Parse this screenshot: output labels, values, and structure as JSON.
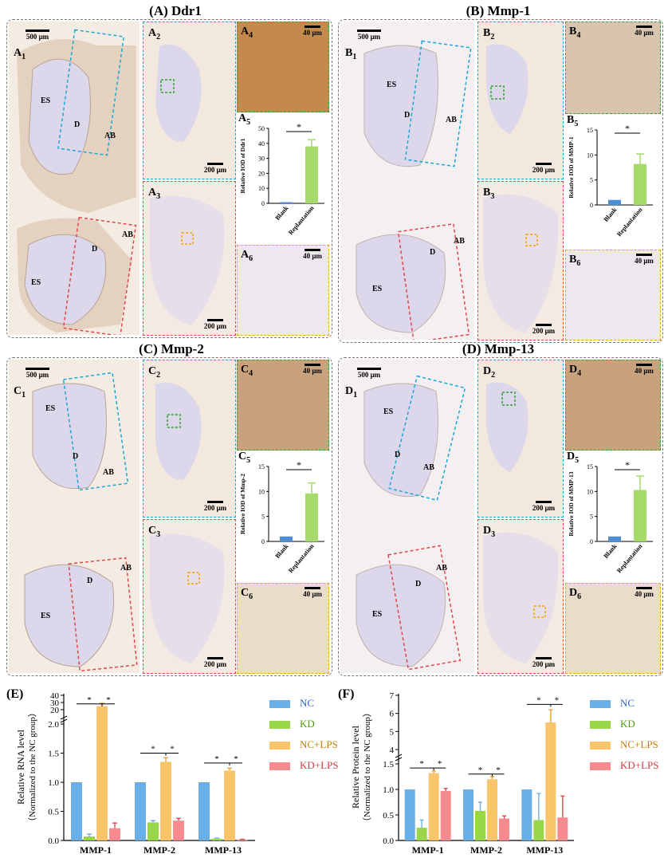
{
  "panels": {
    "A": {
      "title": "(A) Ddr1",
      "labels": {
        "l1": "A",
        "s1": "1",
        "l2": "A",
        "s2": "2",
        "l3": "A",
        "s3": "3",
        "l4": "A",
        "s4": "4",
        "l5": "A",
        "s5": "5",
        "l6": "A",
        "s6": "6"
      },
      "tissue": {
        "es": "ES",
        "d": "D",
        "ab": "AB",
        "es2": "ES",
        "d2": "D",
        "ab2": "AB"
      },
      "scales": {
        "overview": "500 μm",
        "sub2": "200 μm",
        "sub3": "200 μm",
        "sub4": "40 μm",
        "sub6": "40 μm"
      },
      "ylabel": "Relative IOD of Ddr1",
      "star": "*"
    },
    "B": {
      "title": "(B) Mmp-1",
      "labels": {
        "l1": "B",
        "s1": "1",
        "l2": "B",
        "s2": "2",
        "l3": "B",
        "s3": "3",
        "l4": "B",
        "s4": "4",
        "l5": "B",
        "s5": "5",
        "l6": "B",
        "s6": "6"
      },
      "tissue": {
        "es": "ES",
        "d": "D",
        "ab": "AB",
        "es2": "ES",
        "d2": "D",
        "ab2": "AB"
      },
      "scales": {
        "overview": "500 μm",
        "sub2": "200 μm",
        "sub3": "200 μm",
        "sub4": "40 μm",
        "sub6": "40 μm"
      },
      "ylabel": "Relative IOD of MMP-1",
      "star": "*"
    },
    "C": {
      "title": "(C) Mmp-2",
      "labels": {
        "l1": "C",
        "s1": "1",
        "l2": "C",
        "s2": "2",
        "l3": "C",
        "s3": "3",
        "l4": "C",
        "s4": "4",
        "l5": "C",
        "s5": "5",
        "l6": "C",
        "s6": "6"
      },
      "tissue": {
        "es": "ES",
        "d": "D",
        "ab": "AB",
        "es2": "ES",
        "d2": "D",
        "ab2": "AB"
      },
      "scales": {
        "overview": "500 μm",
        "sub2": "200 μm",
        "sub3": "200 μm",
        "sub4": "40 μm",
        "sub6": "40 μm"
      },
      "ylabel": "Relative IOD of Mmp-2",
      "star": "*"
    },
    "D": {
      "title": "(D) Mmp-13",
      "labels": {
        "l1": "D",
        "s1": "1",
        "l2": "D",
        "s2": "2",
        "l3": "D",
        "s3": "3",
        "l4": "D",
        "s4": "4",
        "l5": "D",
        "s5": "5",
        "l6": "D",
        "s6": "6"
      },
      "tissue": {
        "es": "ES",
        "d": "D",
        "ab": "AB",
        "es2": "ES",
        "d2": "D",
        "ab2": "AB"
      },
      "scales": {
        "overview": "500 μm",
        "sub2": "200 μm",
        "sub3": "200 μm",
        "sub4": "40 μm",
        "sub6": "40 μm"
      },
      "ylabel": "Relative IOD of MMP-13",
      "star": "*"
    },
    "E": {
      "title": "(E)",
      "ylabel1": "Relative RNA level",
      "ylabel2": "（Normalized to the NC group）"
    },
    "F": {
      "title": "(F)",
      "ylabel1": "Relative Protein level",
      "ylabel2": "（Normalized to the NC group）"
    }
  },
  "legend": [
    {
      "name": "NC",
      "color": "#6aaee6"
    },
    {
      "name": "KD",
      "color": "#9ad64a"
    },
    {
      "name": "NC+LPS",
      "color": "#f9c56a"
    },
    {
      "name": "KD+LPS",
      "color": "#f58b8e"
    }
  ],
  "chart_data": [
    {
      "id": "A5",
      "type": "bar",
      "categories": [
        "Blank",
        "Replantation"
      ],
      "values": [
        0.8,
        38
      ],
      "errors": [
        0,
        4.5
      ],
      "yticks": [
        0,
        10,
        20,
        30,
        40,
        50
      ],
      "ylim": [
        0,
        50
      ],
      "ylabel": "Relative IOD of Ddr1",
      "colors": [
        "#4f8fd6",
        "#a6db6b"
      ]
    },
    {
      "id": "B5",
      "type": "bar",
      "categories": [
        "Blank",
        "Replantation"
      ],
      "values": [
        1,
        8.2
      ],
      "errors": [
        0,
        2
      ],
      "yticks": [
        0,
        5,
        10,
        15
      ],
      "ylim": [
        0,
        15
      ],
      "ylabel": "Relative IOD of MMP-1",
      "colors": [
        "#4f8fd6",
        "#a6db6b"
      ]
    },
    {
      "id": "C5",
      "type": "bar",
      "categories": [
        "Blank",
        "Replantation"
      ],
      "values": [
        1,
        9.6
      ],
      "errors": [
        0,
        2.1
      ],
      "yticks": [
        0,
        5,
        10,
        15
      ],
      "ylim": [
        0,
        15
      ],
      "ylabel": "Relative IOD of Mmp-2",
      "colors": [
        "#4f8fd6",
        "#a6db6b"
      ]
    },
    {
      "id": "D5",
      "type": "bar",
      "categories": [
        "Blank",
        "Replantation"
      ],
      "values": [
        1,
        10.3
      ],
      "errors": [
        0,
        2.8
      ],
      "yticks": [
        0,
        5,
        10,
        15
      ],
      "ylim": [
        0,
        15
      ],
      "ylabel": "Relative IOD of MMP-13",
      "colors": [
        "#4f8fd6",
        "#a6db6b"
      ]
    },
    {
      "id": "E",
      "type": "bar",
      "categories": [
        "MMP-1",
        "MMP-2",
        "MMP-13"
      ],
      "series": [
        {
          "name": "NC",
          "values": [
            1,
            1,
            1
          ],
          "errors": [
            0,
            0,
            0
          ]
        },
        {
          "name": "KD",
          "values": [
            0.07,
            0.31,
            0.03
          ],
          "errors": [
            0.04,
            0.03,
            0.01
          ]
        },
        {
          "name": "NC+LPS",
          "values": [
            25,
            1.35,
            1.2
          ],
          "errors": [
            4,
            0.07,
            0.04
          ]
        },
        {
          "name": "KD+LPS",
          "values": [
            0.21,
            0.34,
            0.01
          ],
          "errors": [
            0.09,
            0.04,
            0.01
          ]
        }
      ],
      "yticks": [
        "0.0",
        "0.5",
        "1.0",
        "1.5",
        "2.0",
        "20",
        "30",
        "40"
      ],
      "axis_break": true,
      "ylabel": "Relative RNA level",
      "star": "*"
    },
    {
      "id": "F",
      "type": "bar",
      "categories": [
        "MMP-1",
        "MMP-2",
        "MMP-13"
      ],
      "series": [
        {
          "name": "NC",
          "values": [
            1,
            1,
            1
          ],
          "errors": [
            0,
            0,
            0
          ]
        },
        {
          "name": "KD",
          "values": [
            0.25,
            0.58,
            0.4
          ],
          "errors": [
            0.15,
            0.17,
            0.52
          ]
        },
        {
          "name": "NC+LPS",
          "values": [
            1.32,
            1.2,
            5.5
          ],
          "errors": [
            0.04,
            0.05,
            0.7
          ]
        },
        {
          "name": "KD+LPS",
          "values": [
            0.97,
            0.43,
            0.45
          ],
          "errors": [
            0.05,
            0.05,
            0.42
          ]
        }
      ],
      "yticks": [
        "0.0",
        "0.5",
        "1.0",
        "1.5",
        "4",
        "5",
        "6",
        "7"
      ],
      "axis_break": true,
      "ylabel": "Relative Protein level",
      "star": "*"
    }
  ]
}
